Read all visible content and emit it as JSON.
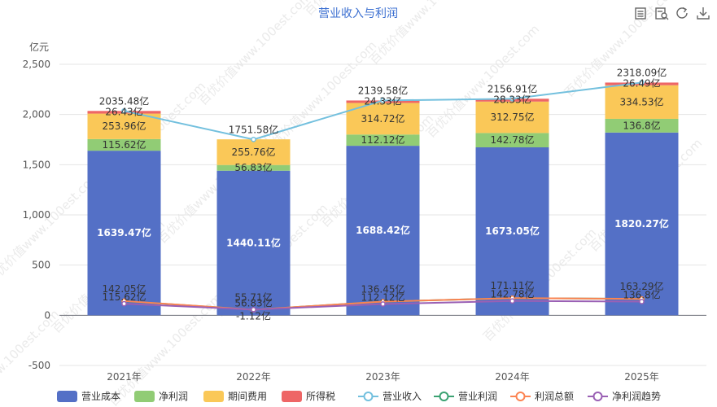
{
  "toolbar": {
    "icons": [
      "data-view-icon",
      "restore-icon",
      "refresh-icon",
      "save-image-icon"
    ]
  },
  "chart_data": {
    "type": "bar",
    "title": "营业收入与利润",
    "ylabel": "亿元",
    "ylim": [
      -500,
      2500
    ],
    "yticks": [
      "-500",
      "0",
      "500",
      "1,000",
      "1,500",
      "2,000",
      "2,500"
    ],
    "categories": [
      "2021年",
      "2022年",
      "2023年",
      "2024年",
      "2025年"
    ],
    "grid": true,
    "legend_position": "bottom",
    "watermark": "百优价值www.100est.com",
    "stacked_series": [
      {
        "name": "营业成本",
        "color": "#5470c6",
        "values": [
          1639.47,
          1440.11,
          1688.42,
          1673.05,
          1820.27
        ],
        "labels": [
          "1639.47亿",
          "1440.11亿",
          "1688.42亿",
          "1673.05亿",
          "1820.27亿"
        ]
      },
      {
        "name": "净利润",
        "color": "#91cc75",
        "values": [
          115.62,
          56.83,
          112.12,
          142.78,
          136.8
        ],
        "labels": [
          "115.62亿",
          "56.83亿",
          "112.12亿",
          "142.78亿",
          "136.8亿"
        ]
      },
      {
        "name": "期间费用",
        "color": "#fac858",
        "values": [
          253.96,
          255.76,
          314.72,
          312.75,
          334.53
        ],
        "labels": [
          "253.96亿",
          "255.76亿",
          "314.72亿",
          "312.75亿",
          "334.53亿"
        ]
      },
      {
        "name": "所得税",
        "color": "#ee6666",
        "values": [
          26.43,
          0,
          24.33,
          28.33,
          26.49
        ],
        "labels": [
          "26.43亿",
          "",
          "24.33亿",
          "28.33亿",
          "26.49亿"
        ]
      }
    ],
    "line_series": [
      {
        "name": "营业收入",
        "color": "#73c0de",
        "values": [
          2035.48,
          1751.58,
          2139.58,
          2156.91,
          2318.09
        ],
        "labels": [
          "2035.48亿",
          "1751.58亿",
          "2139.58亿",
          "2156.91亿",
          "2318.09亿"
        ]
      },
      {
        "name": "营业利润",
        "color": "#3ba272",
        "values": [
          141.5,
          55.7,
          136.4,
          171.0,
          163.1
        ],
        "labels": [
          "",
          "",
          "",
          "",
          ""
        ]
      },
      {
        "name": "利润总额",
        "color": "#fc8452",
        "values": [
          142.05,
          55.71,
          136.45,
          171.11,
          163.29
        ],
        "labels": [
          "142.05亿",
          "55.71亿",
          "136.45亿",
          "171.11亿",
          "163.29亿"
        ]
      },
      {
        "name": "净利润趋势",
        "color": "#9a60b4",
        "values": [
          115.62,
          56.83,
          112.12,
          142.78,
          136.8
        ],
        "labels": [
          "115.62亿",
          "56.83亿",
          "112.12亿",
          "142.78亿",
          "136.8亿"
        ]
      }
    ],
    "extra_labels": [
      {
        "category": "2022年",
        "text": "-1.12亿"
      }
    ]
  }
}
